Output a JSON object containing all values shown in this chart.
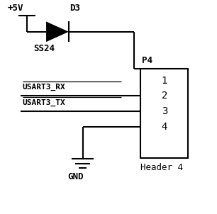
{
  "bg_color": "#ffffff",
  "line_color": "#000000",
  "labels": {
    "plus5v": "+5V",
    "d3": "D3",
    "ss24": "SS24",
    "p4": "P4",
    "usart3_rx": "USART3_RX",
    "usart3_tx": "USART3_TX",
    "gnd": "GND",
    "header4": "Header 4",
    "pin1": "1",
    "pin2": "2",
    "pin3": "3",
    "pin4": "4"
  }
}
